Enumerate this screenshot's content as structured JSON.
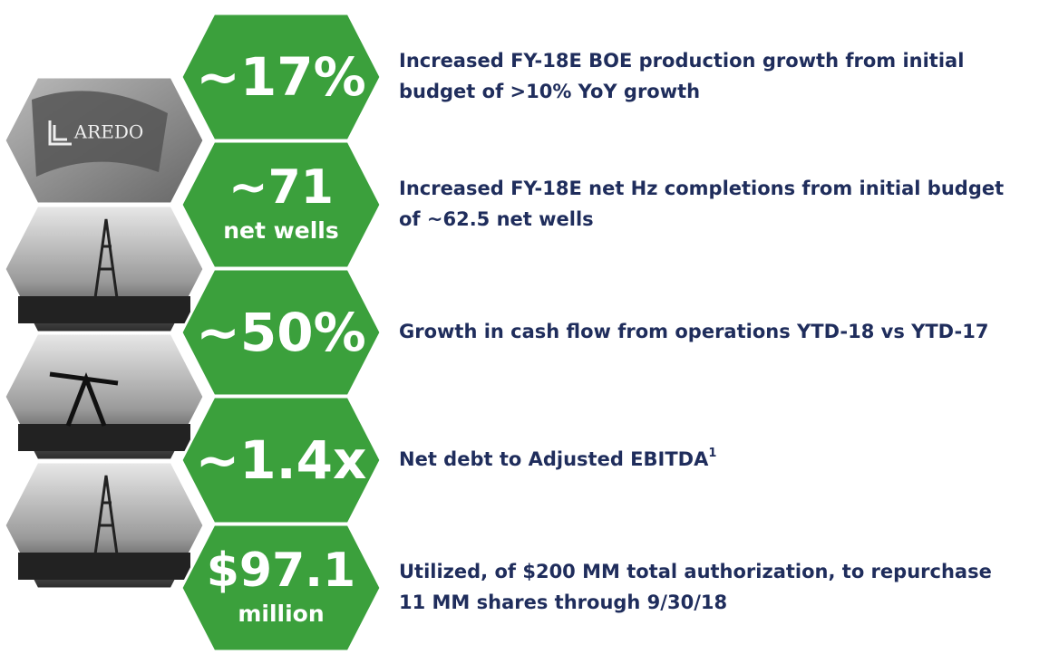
{
  "logo_text": "AREDO",
  "items": [
    {
      "metric": "~17%",
      "description": [
        "Increased FY-18E BOE production growth from initial",
        "budget of >10% YoY growth"
      ]
    },
    {
      "metric": "~71",
      "sub": "net wells",
      "description": [
        "Increased FY-18E net Hz completions from initial budget",
        "of ~62.5 net wells"
      ]
    },
    {
      "metric": "~50%",
      "description": [
        "Growth in cash flow from operations YTD-18 vs YTD-17"
      ]
    },
    {
      "metric": "~1.4x",
      "description": [
        "Net debt to Adjusted EBITDA"
      ],
      "footnote": "1"
    },
    {
      "metric": "$97.1",
      "sub": "million",
      "description": [
        "Utilized, of $200 MM total authorization, to repurchase",
        "11 MM shares through 9/30/18"
      ]
    }
  ]
}
